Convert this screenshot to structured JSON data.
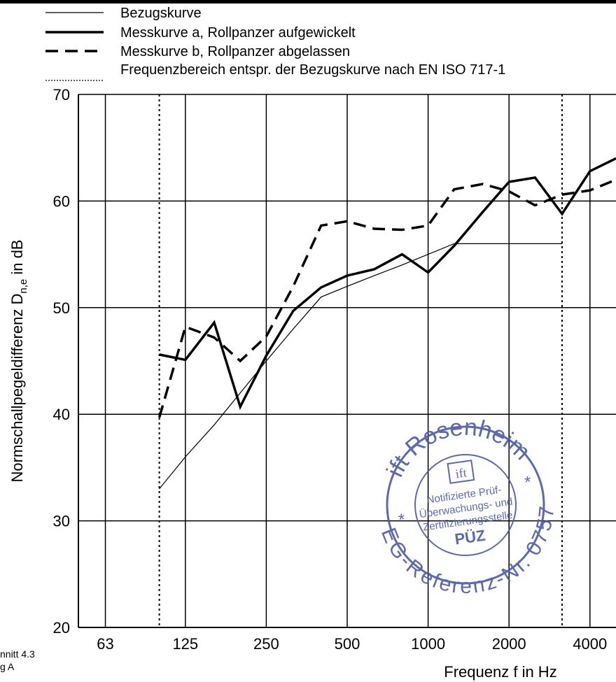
{
  "chart_data": {
    "type": "line",
    "xlabel": "Frequenz f in Hz",
    "ylabel": {
      "main": "Normschallpegeldifferenz D",
      "sub": "n,e",
      "suffix": " in dB"
    },
    "x": [
      100,
      125,
      160,
      200,
      250,
      315,
      400,
      500,
      630,
      800,
      1000,
      1250,
      1600,
      2000,
      2500,
      3150,
      4000,
      5000
    ],
    "series": [
      {
        "name": "Bezugskurve",
        "color": "#000000",
        "style": "thin",
        "values": [
          33,
          36,
          39,
          42,
          45,
          48,
          51,
          52,
          53,
          54,
          55,
          56,
          56,
          56,
          56,
          56,
          null,
          null
        ]
      },
      {
        "name": "Messkurve a, Rollpanzer aufgewickelt",
        "color": "#000000",
        "style": "solid",
        "values": [
          45.6,
          45.1,
          48.6,
          40.7,
          45.5,
          49.7,
          51.9,
          53.0,
          53.6,
          55.0,
          53.3,
          55.8,
          59.0,
          61.8,
          62.2,
          58.8,
          62.8,
          64.0
        ]
      },
      {
        "name": "Messkurve b, Rollpanzer abgelassen",
        "color": "#000000",
        "style": "dashed",
        "values": [
          39.7,
          48.2,
          47.2,
          45.0,
          47.3,
          52.0,
          57.7,
          58.1,
          57.4,
          57.3,
          57.7,
          61.1,
          61.6,
          60.9,
          59.6,
          60.6,
          61.0,
          62.0
        ]
      }
    ],
    "range": {
      "name": "Frequenzbereich entspr. der Bezugskurve nach EN ISO 717-1",
      "x": [
        100,
        3150
      ]
    },
    "xlim": [
      50,
      5000
    ],
    "xlog": true,
    "xticks": [
      63,
      125,
      250,
      500,
      1000,
      2000,
      4000
    ],
    "ylim": [
      20,
      70
    ],
    "yticks": [
      20,
      30,
      40,
      50,
      60,
      70
    ],
    "grid": true,
    "annotations": [
      "nnitt 4.3",
      "g A"
    ],
    "stamp": {
      "top": "ift Rosenheim",
      "logo": "ift",
      "line1": "Notifizierte Prüf-",
      "line2": "Überwachungs- und",
      "line3": "Zertifizierungsstelle",
      "line4": "PÜZ",
      "bottom": "EG-Referenz-Nr. 0757",
      "star": "*"
    }
  }
}
